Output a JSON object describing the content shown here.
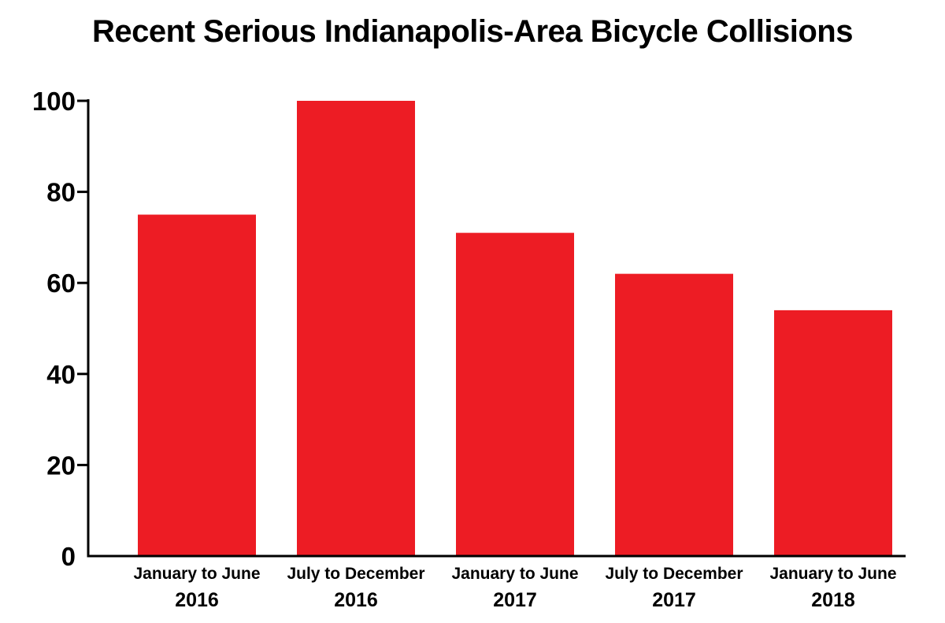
{
  "chart_data": {
    "type": "bar",
    "title": "Recent Serious Indianapolis-Area Bicycle Collisions",
    "xlabel": "",
    "ylabel": "",
    "categories": [
      [
        "January to June",
        "2016"
      ],
      [
        "July to December",
        "2016"
      ],
      [
        "January to June",
        "2017"
      ],
      [
        "July to December",
        "2017"
      ],
      [
        "January to June",
        "2018"
      ]
    ],
    "values": [
      75,
      100,
      71,
      62,
      54
    ],
    "ylim": [
      0,
      100
    ],
    "yticks": [
      0,
      20,
      40,
      60,
      80,
      100
    ],
    "grid": false,
    "legend": "none",
    "colors": {
      "bar": "#ed1c24",
      "axis": "#000000",
      "text": "#000000",
      "background": "#ffffff"
    }
  }
}
